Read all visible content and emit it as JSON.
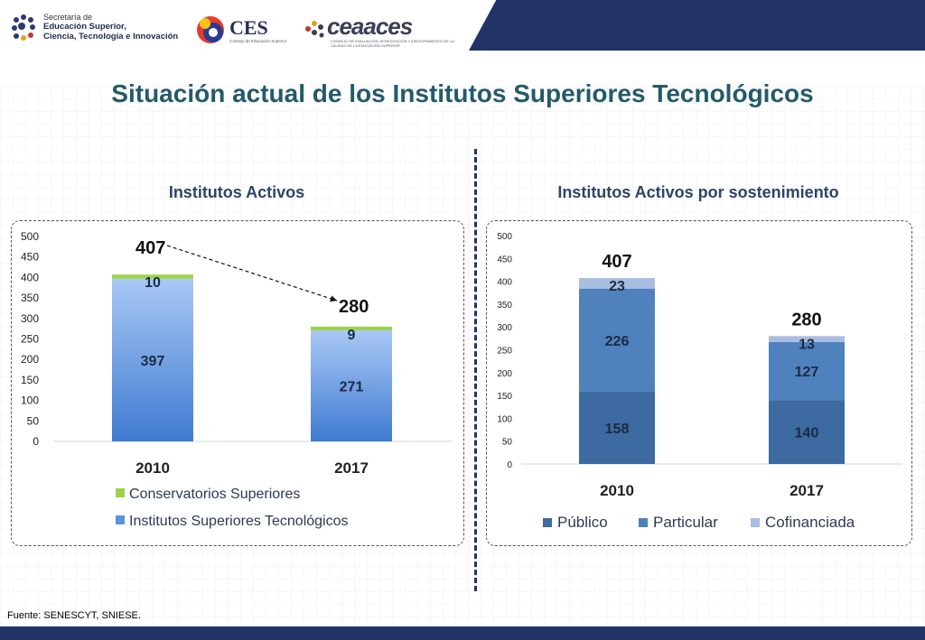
{
  "header": {
    "logo1_line1": "Secretaría de",
    "logo1_line2": "Educación Superior,",
    "logo1_line3": "Ciencia, Tecnología e Innovación",
    "ces_name": "CES",
    "ces_sub": "Consejo de Educación Superior",
    "ceaaces_name": "ceaaces",
    "ceaaces_sub": "CONSEJO DE EVALUACIÓN, ACREDITACIÓN Y ASEGURAMIENTO DE LA CALIDAD DE LA EDUCACIÓN SUPERIOR"
  },
  "title": "Situación actual de los Institutos Superiores Tecnológicos",
  "source": "Fuente: SENESCYT, SNIESE.",
  "colors": {
    "title": "#245a6b",
    "header_band": "#223366",
    "green": "#9bd34a",
    "light_blue": "#8db8f0",
    "publico": "#3d6aa0",
    "particular": "#4f81bd",
    "cofinanciada": "#a9bde0"
  },
  "chart_data": [
    {
      "type": "bar",
      "title": "Institutos Activos",
      "categories": [
        "2010",
        "2017"
      ],
      "stacked": true,
      "ylim": [
        0,
        500
      ],
      "yticks": [
        "0",
        "50",
        "100",
        "150",
        "200",
        "250",
        "300",
        "350",
        "400",
        "450",
        "500"
      ],
      "series": [
        {
          "name": "Institutos Superiores Tecnológicos",
          "values": [
            397,
            271
          ]
        },
        {
          "name": "Conservatorios Superiores",
          "values": [
            10,
            9
          ]
        }
      ],
      "totals": [
        407,
        280
      ],
      "total_labels": [
        "407",
        "280"
      ],
      "value_labels": {
        "Institutos Superiores Tecnológicos": [
          "397",
          "271"
        ],
        "Conservatorios Superiores": [
          "10",
          "9"
        ]
      },
      "legend": [
        "Conservatorios Superiores",
        "Institutos Superiores Tecnológicos"
      ],
      "legend_position": "bottom",
      "annotation": "arrow from 2010 total to 2017 total"
    },
    {
      "type": "bar",
      "title": "Institutos Activos por sostenimiento",
      "categories": [
        "2010",
        "2017"
      ],
      "stacked": true,
      "ylim": [
        0,
        500
      ],
      "yticks": [
        "0",
        "50",
        "100",
        "150",
        "200",
        "250",
        "300",
        "350",
        "400",
        "450",
        "500"
      ],
      "series": [
        {
          "name": "Público",
          "values": [
            158,
            140
          ]
        },
        {
          "name": "Particular",
          "values": [
            226,
            127
          ]
        },
        {
          "name": "Cofinanciada",
          "values": [
            23,
            13
          ]
        }
      ],
      "totals": [
        407,
        280
      ],
      "total_labels": [
        "407",
        "280"
      ],
      "value_labels": {
        "Público": [
          "158",
          "140"
        ],
        "Particular": [
          "226",
          "127"
        ],
        "Cofinanciada": [
          "23",
          "13"
        ]
      },
      "legend": [
        "Público",
        "Particular",
        "Cofinanciada"
      ],
      "legend_position": "bottom"
    }
  ]
}
